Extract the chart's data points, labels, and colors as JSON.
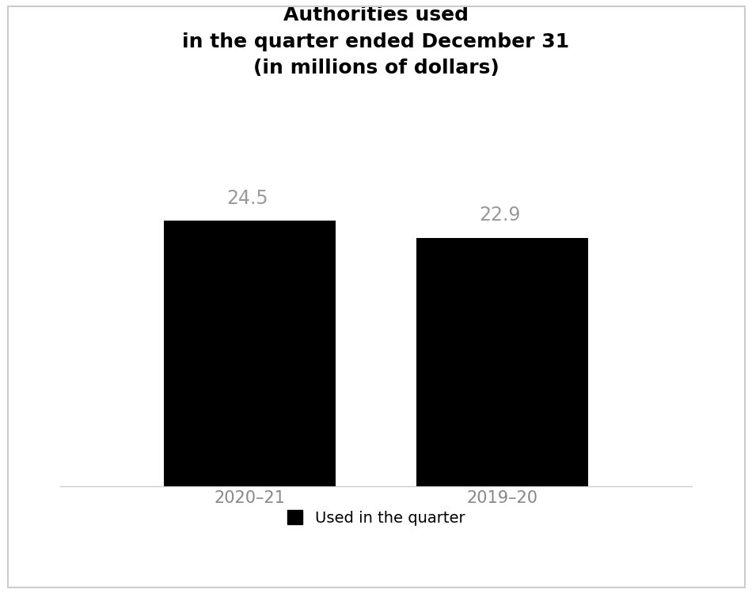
{
  "categories": [
    "2020–21",
    "2019–20"
  ],
  "values": [
    24.5,
    22.9
  ],
  "bar_color": "#000000",
  "title_line1": "Authorities used",
  "title_line2": "in the quarter ended December 31",
  "title_line3": "(in millions of dollars)",
  "title_fontsize": 18,
  "title_fontweight": "bold",
  "value_label_color": "#999999",
  "value_label_fontsize": 17,
  "xtick_fontsize": 15,
  "xtick_color": "#888888",
  "legend_label": "Used in the quarter",
  "legend_fontsize": 14,
  "bar_width": 0.3,
  "ylim": [
    0,
    35
  ],
  "background_color": "#ffffff",
  "figure_border_color": "#cccccc"
}
